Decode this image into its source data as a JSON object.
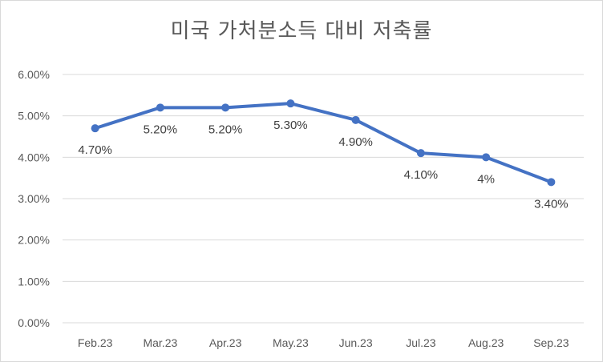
{
  "chart_data": {
    "type": "line",
    "title": "미국 가처분소득 대비 저축률",
    "categories": [
      "Feb.23",
      "Mar.23",
      "Apr.23",
      "May.23",
      "Jun.23",
      "Jul.23",
      "Aug.23",
      "Sep.23"
    ],
    "series": [
      {
        "values": [
          4.7,
          5.2,
          5.2,
          5.3,
          4.9,
          4.1,
          4.0,
          3.4
        ],
        "data_labels": [
          "4.70%",
          "5.20%",
          "5.20%",
          "5.30%",
          "4.90%",
          "4.10%",
          "4%",
          "3.40%"
        ],
        "color": "#4472C4"
      }
    ],
    "ylim": [
      0,
      6
    ],
    "yticks": [
      "0.00%",
      "1.00%",
      "2.00%",
      "3.00%",
      "4.00%",
      "5.00%",
      "6.00%"
    ],
    "grid": true,
    "legend": "none"
  }
}
